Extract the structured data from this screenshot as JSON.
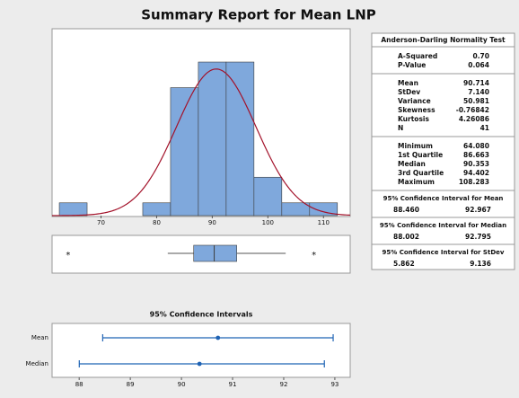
{
  "title": "Summary Report for Mean LNP",
  "chart_data": [
    {
      "type": "histogram",
      "bins": [
        62.5,
        67.5,
        72.5,
        77.5,
        82.5,
        87.5,
        92.5,
        97.5,
        102.5,
        107.5,
        112.5
      ],
      "counts": [
        1,
        0,
        0,
        1,
        10,
        12,
        12,
        3,
        1,
        1
      ],
      "color": "#7fa8dc",
      "fit_color": "#a3122a",
      "xlim": [
        61.2,
        114.8
      ],
      "xticks": [
        70,
        80,
        90,
        100,
        110
      ],
      "ylim": [
        0,
        14.6
      ]
    },
    {
      "type": "boxplot",
      "whisker_low": 82.0,
      "whisker_high": 103.2,
      "outlier_marker": "*",
      "color": "#7fa8dc",
      "xlim": [
        61.2,
        114.8
      ]
    },
    {
      "type": "interval",
      "title": "95% Confidence Intervals",
      "categories": [
        "Mean",
        "Median"
      ],
      "color": "#1f63b4",
      "xlim": [
        87.47,
        93.3
      ],
      "xticks": [
        88,
        89,
        90,
        91,
        92,
        93
      ]
    }
  ],
  "stats": {
    "normality_title": "Anderson-Darling Normality Test",
    "groups": [
      [
        {
          "name": "A-Squared",
          "value": {
            "value": 0.7,
            "label": "0.70"
          }
        },
        {
          "name": "P-Value",
          "value": 0.064
        }
      ],
      [
        {
          "name": "Mean",
          "value": 90.714
        },
        {
          "name": "StDev",
          "value": {
            "value": 7.14,
            "label": "7.140"
          }
        },
        {
          "name": "Variance",
          "value": 50.981
        },
        {
          "name": "Skewness",
          "value": -0.76842
        },
        {
          "name": "Kurtosis",
          "value": 4.26086
        },
        {
          "name": "N",
          "value": 41
        }
      ],
      [
        {
          "name": "Minimum",
          "value": {
            "value": 64.08,
            "label": "64.080"
          }
        },
        {
          "name": "1st Quartile",
          "value": 86.663
        },
        {
          "name": "Median",
          "value": 90.353
        },
        {
          "name": "3rd Quartile",
          "value": 94.402
        },
        {
          "name": "Maximum",
          "value": 108.283
        }
      ]
    ],
    "intervals": [
      {
        "title": "95% Confidence Interval for Mean",
        "low": {
          "value": 88.46,
          "label": "88.460"
        },
        "high": 92.967
      },
      {
        "title": "95% Confidence Interval for Median",
        "low": 88.002,
        "high": 92.795
      },
      {
        "title": "95% Confidence Interval for StDev",
        "low": 5.862,
        "high": 9.136
      }
    ]
  }
}
